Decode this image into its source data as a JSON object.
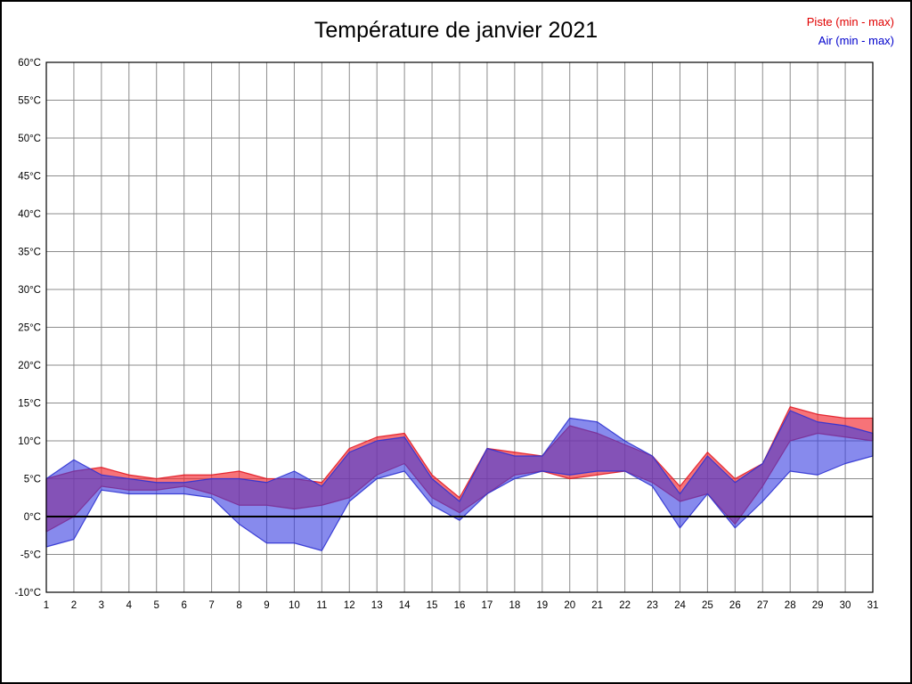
{
  "chart_data": {
    "type": "area",
    "title": "Température de janvier 2021",
    "xlabel": "",
    "ylabel": "",
    "categories": [
      1,
      2,
      3,
      4,
      5,
      6,
      7,
      8,
      9,
      10,
      11,
      12,
      13,
      14,
      15,
      16,
      17,
      18,
      19,
      20,
      21,
      22,
      23,
      24,
      25,
      26,
      27,
      28,
      29,
      30,
      31
    ],
    "ylim": [
      -10,
      60
    ],
    "ytick_step": 5,
    "ytick_suffix": "°C",
    "grid": true,
    "zero_line": 0,
    "legend_position": "top-right",
    "grid_color": "#8c8c8c",
    "series": [
      {
        "name": "Piste",
        "legend": "Piste (min - max)",
        "legend_color": "#e00000",
        "fill": "rgba(242,40,48,0.65)",
        "stroke": "rgba(225,25,35,0.9)",
        "min": [
          -2,
          0,
          4,
          3.5,
          3.5,
          4,
          3,
          1.5,
          1.5,
          1,
          1.5,
          2.5,
          5.5,
          7,
          2.5,
          0.5,
          3,
          5.5,
          6,
          5,
          5.5,
          6,
          4.5,
          2,
          3,
          -1,
          4,
          10,
          11,
          10.5,
          10
        ],
        "max": [
          5,
          6,
          6.5,
          5.5,
          5,
          5.5,
          5.5,
          6,
          5,
          5,
          4.5,
          9,
          10.5,
          11,
          5.5,
          2.5,
          9,
          8.5,
          8,
          12,
          11,
          9.5,
          8,
          4,
          8.5,
          5,
          7,
          14.5,
          13.5,
          13,
          13
        ]
      },
      {
        "name": "Air",
        "legend": "Air (min - max)",
        "legend_color": "#0000cc",
        "fill": "rgba(55,60,225,0.6)",
        "stroke": "rgba(45,50,210,0.9)",
        "min": [
          -4,
          -3,
          3.5,
          3,
          3,
          3,
          2.5,
          -1,
          -3.5,
          -3.5,
          -4.5,
          2,
          5,
          6,
          1.5,
          -0.5,
          3,
          5,
          6,
          5.5,
          6,
          6,
          4,
          -1.5,
          3,
          -1.5,
          2,
          6,
          5.5,
          7,
          8
        ],
        "max": [
          5,
          7.5,
          5.5,
          5,
          4.5,
          4.5,
          5,
          5,
          4.5,
          6,
          4,
          8.5,
          10,
          10.5,
          5,
          2,
          9,
          8,
          8,
          13,
          12.5,
          10,
          8,
          3,
          8,
          4.5,
          7,
          14,
          12.5,
          12,
          11
        ]
      }
    ]
  }
}
